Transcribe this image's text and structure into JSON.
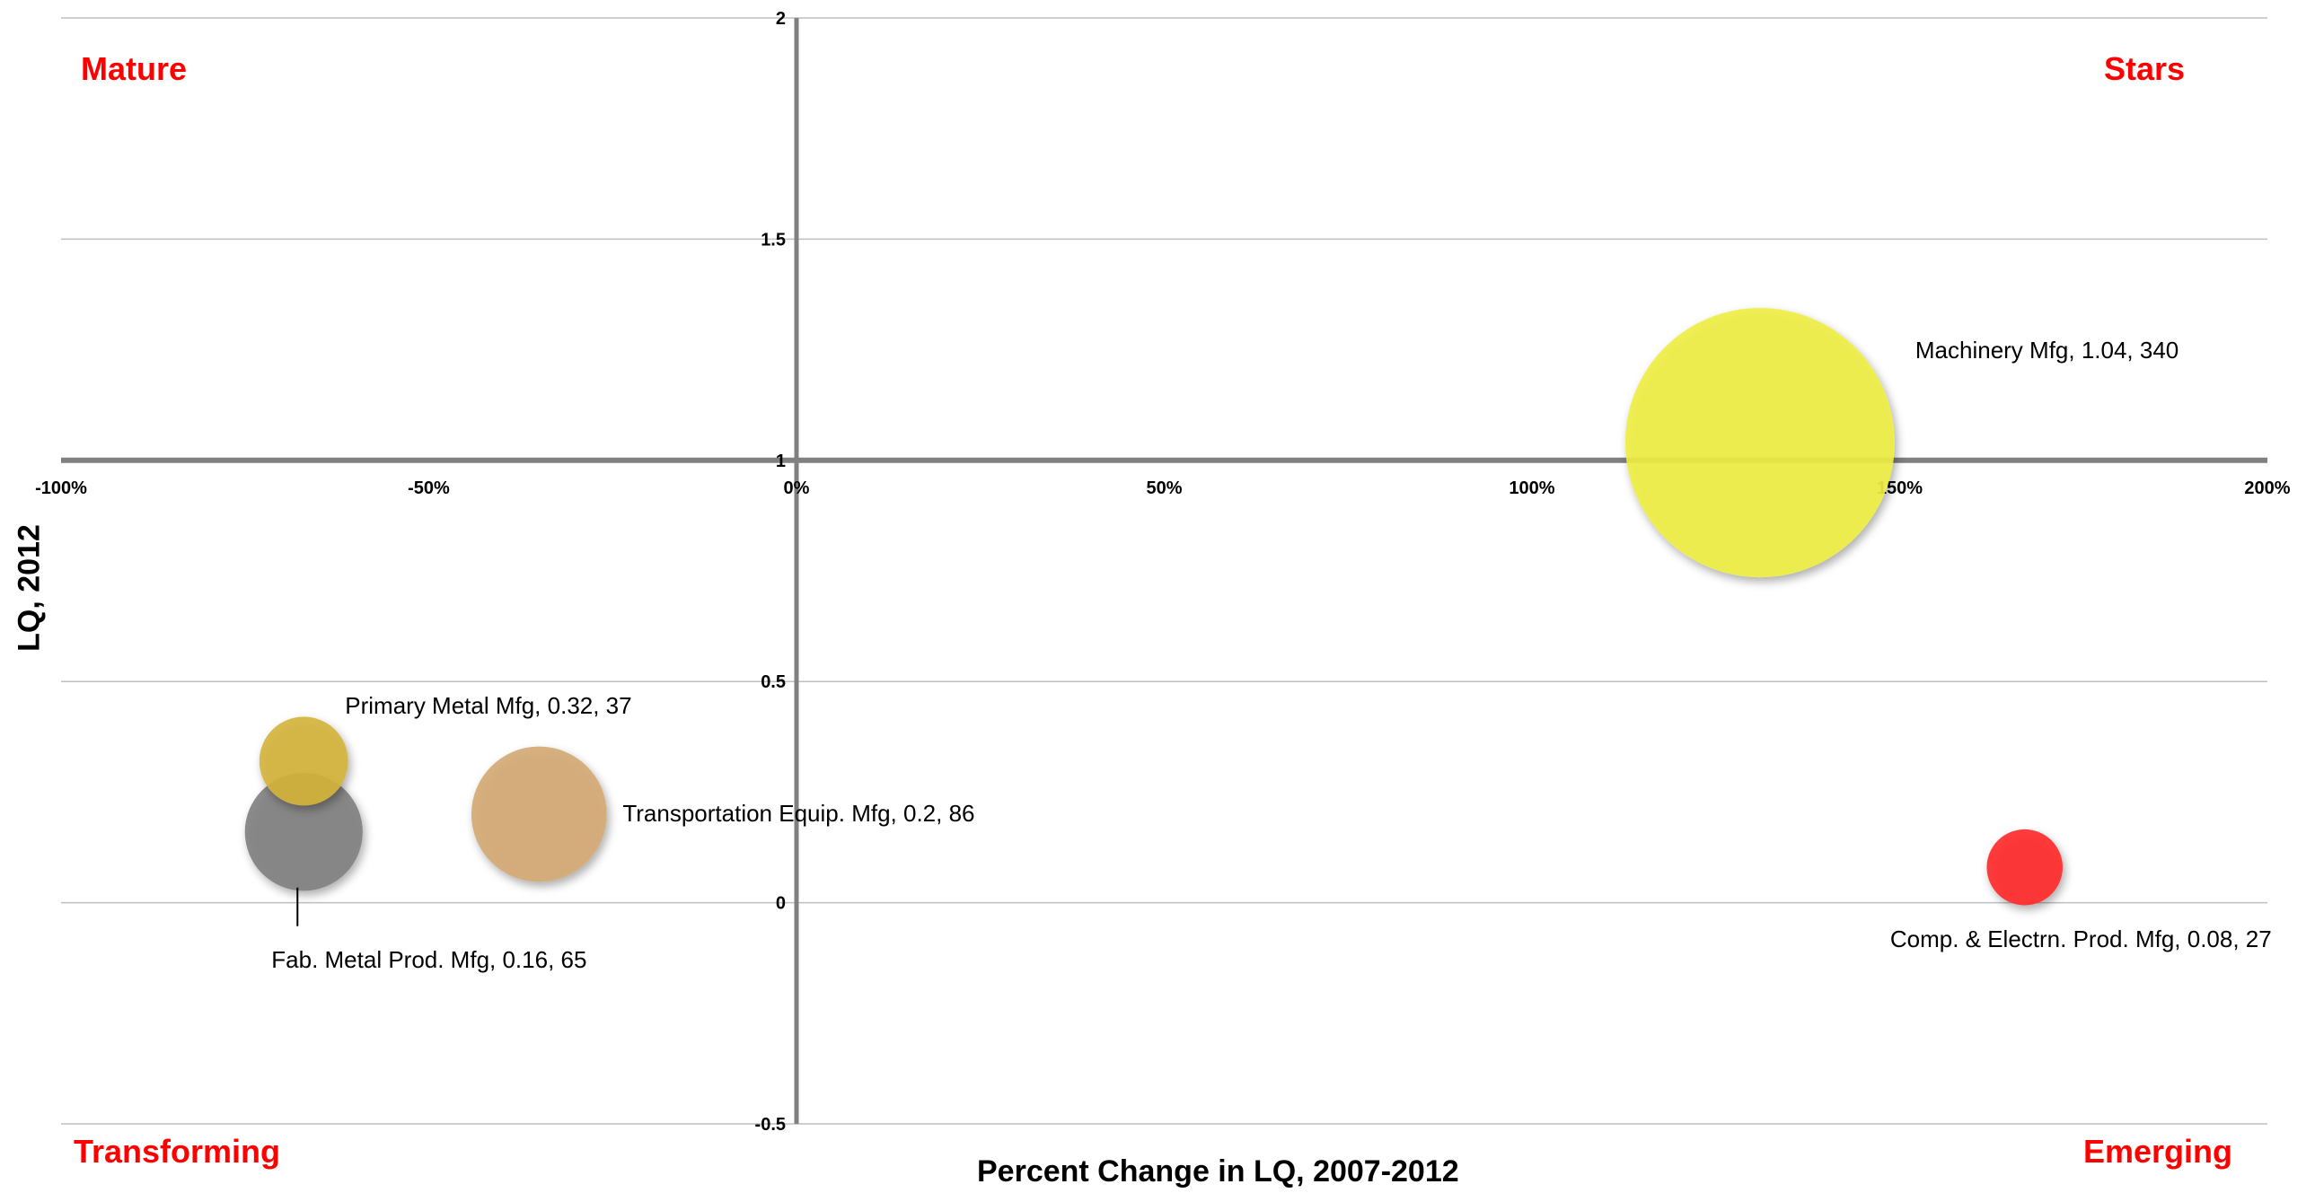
{
  "chart_data": {
    "type": "bubble",
    "xlabel": "Percent Change in LQ, 2007-2012",
    "ylabel": "LQ, 2012",
    "xlim": [
      -1.0,
      2.0
    ],
    "ylim": [
      -0.5,
      2.0
    ],
    "x_ticks": [
      -1.0,
      -0.5,
      0.0,
      0.5,
      1.0,
      1.5,
      2.0
    ],
    "x_tick_labels": [
      "-100%",
      "-50%",
      "0%",
      "50%",
      "100%",
      "150%",
      "200%"
    ],
    "y_ticks": [
      -0.5,
      0,
      0.5,
      1,
      1.5,
      2
    ],
    "y_tick_labels": [
      "-0.5",
      "0",
      "0.5",
      "1",
      "1.5",
      "2"
    ],
    "grid": "horizontal",
    "quadrants": {
      "top_left": "Mature",
      "top_right": "Stars",
      "bottom_left": "Transforming",
      "bottom_right": "Emerging"
    },
    "series": [
      {
        "name": "Machinery Mfg",
        "x": 1.31,
        "y": 1.04,
        "size": 340,
        "color": "#eeee44",
        "label": "Machinery Mfg, 1.04, 340"
      },
      {
        "name": "Primary Metal Mfg",
        "x": -0.67,
        "y": 0.32,
        "size": 37,
        "color": "#d4b43c",
        "label": "Primary Metal Mfg, 0.32, 37"
      },
      {
        "name": "Fab. Metal Prod. Mfg",
        "x": -0.67,
        "y": 0.16,
        "size": 65,
        "color": "#7f7f7f",
        "label": "Fab. Metal Prod. Mfg, 0.16, 65"
      },
      {
        "name": "Transportation Equip. Mfg",
        "x": -0.35,
        "y": 0.2,
        "size": 86,
        "color": "#d4a874",
        "label": "Transportation Equip. Mfg, 0.2, 86"
      },
      {
        "name": "Comp. & Electrn. Prod. Mfg",
        "x": 1.67,
        "y": 0.08,
        "size": 27,
        "color": "#ff2a2a",
        "label": "Comp. & Electrn. Prod. Mfg, 0.08, 27"
      }
    ]
  }
}
